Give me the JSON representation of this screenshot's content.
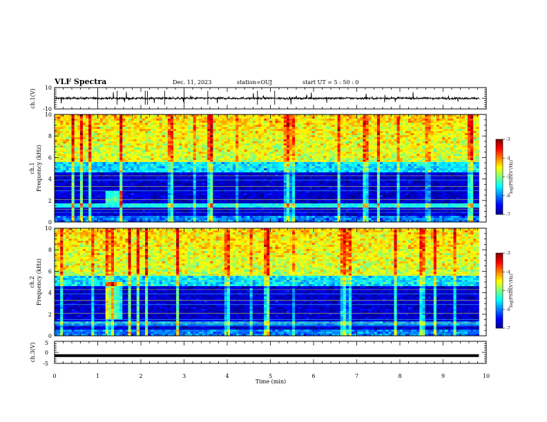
{
  "header": {
    "title": "VLF Spectra",
    "date": "Dec. 11, 2023",
    "station": "station=OUJ",
    "start": "start  UT =  5 : 50 : 0"
  },
  "chart_data": [
    {
      "id": "ch1-waveform",
      "type": "line",
      "ylabel": "ch.1(V)",
      "ylim": [
        -10,
        10
      ],
      "yticks": [
        "10",
        "-10"
      ],
      "xlim": [
        0,
        10
      ],
      "series": [
        {
          "values_summary": "noise around 0 V, amplitude about ±1 V with occasional spikes to about ±3 V",
          "data_end_min": 9.83
        }
      ]
    },
    {
      "id": "ch1-spectrogram",
      "type": "heatmap",
      "ylabel_lines": [
        "ch.1",
        "Frequency (kHz)"
      ],
      "ylim": [
        0,
        10
      ],
      "yticks": [
        "0",
        "2",
        "4",
        "6",
        "8",
        "10"
      ],
      "xlim": [
        0,
        10
      ],
      "data_end_min": 9.83,
      "color_scale": {
        "label": "log(PSD)(V²/Hz)",
        "ticks": [
          "-3",
          "-4",
          "-5",
          "-6",
          "-7"
        ],
        "range": [
          -7,
          -3
        ]
      },
      "features": [
        {
          "desc": "broadband sferics above about 5 kHz",
          "freq_khz": [
            5,
            10
          ],
          "log_psd": -4.5
        },
        {
          "desc": "quiet band",
          "freq_khz": [
            0.5,
            4.8
          ],
          "log_psd": -6.7
        },
        {
          "desc": "narrowband line",
          "freq_khz": 1.5,
          "log_psd": -5.4
        }
      ]
    },
    {
      "id": "ch2-spectrogram",
      "type": "heatmap",
      "ylabel_lines": [
        "ch.2",
        "Frequency (kHz)"
      ],
      "ylim": [
        0,
        10
      ],
      "yticks": [
        "0",
        "2",
        "4",
        "6",
        "8",
        "10"
      ],
      "xlim": [
        0,
        10
      ],
      "data_end_min": 9.83,
      "color_scale": {
        "label": "log(PSD)(V²/Hz)",
        "ticks": [
          "-3",
          "-4",
          "-5",
          "-6",
          "-7"
        ],
        "range": [
          -7,
          -3
        ]
      },
      "features": [
        {
          "desc": "broadband sferics above about 5 kHz",
          "freq_khz": [
            5,
            10
          ],
          "log_psd": -4.5
        },
        {
          "desc": "quiet band",
          "freq_khz": [
            0.5,
            4.8
          ],
          "log_psd": -6.7
        },
        {
          "desc": "emission near 1.2–1.6 min",
          "time_min": [
            1.2,
            1.6
          ],
          "freq_khz": [
            1.5,
            5
          ],
          "log_psd": -5
        }
      ]
    },
    {
      "id": "ch3-waveform",
      "type": "line",
      "ylabel": "ch.3(V)",
      "ylim": [
        -5,
        5
      ],
      "yticks": [
        "5",
        "0",
        "-5"
      ],
      "xlim": [
        0,
        10
      ],
      "xlabel": "Time (min)",
      "xticks": [
        "0",
        "1",
        "2",
        "3",
        "4",
        "5",
        "6",
        "7",
        "8",
        "9",
        "10"
      ],
      "series": [
        {
          "values_summary": "constant at about -1.5 V",
          "value": -1.5,
          "data_end_min": 9.83
        }
      ]
    }
  ]
}
